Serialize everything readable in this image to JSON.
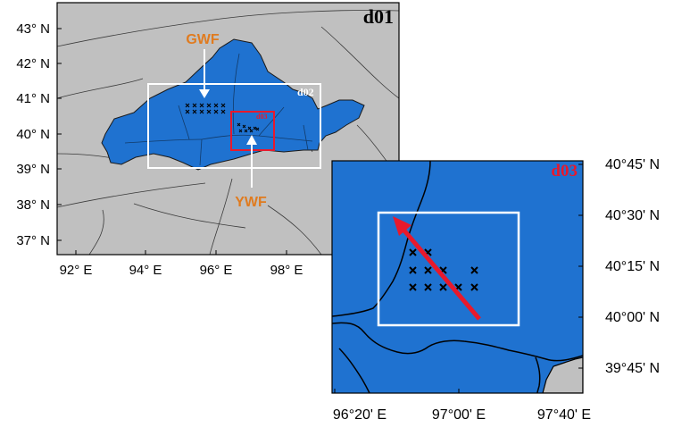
{
  "main_map": {
    "label": "d01",
    "lat_ticks": [
      "43° N",
      "42° N",
      "41° N",
      "40° N",
      "39° N",
      "38° N",
      "37° N"
    ],
    "lon_ticks": [
      "92° E",
      "94° E",
      "96° E",
      "98° E"
    ],
    "nested_domains": [
      "d02",
      "d03"
    ],
    "annotations": [
      {
        "label": "GWF",
        "color": "#e07b1f"
      },
      {
        "label": "YWF",
        "color": "#e07b1f"
      }
    ]
  },
  "inset_map": {
    "label": "d03",
    "label_color": "#e8192c",
    "lat_ticks": [
      "40°45' N",
      "40°30' N",
      "40°15' N",
      "40°00' N",
      "39°45' N"
    ],
    "lon_ticks": [
      "96°20' E",
      "97°00' E",
      "97°40' E"
    ]
  },
  "colors": {
    "region_fill": "#1f72d0",
    "land_fill": "#c0c0c0",
    "d02_box": "#ffffff",
    "d03_box": "#e8192c",
    "arrow": "#e8192c"
  }
}
